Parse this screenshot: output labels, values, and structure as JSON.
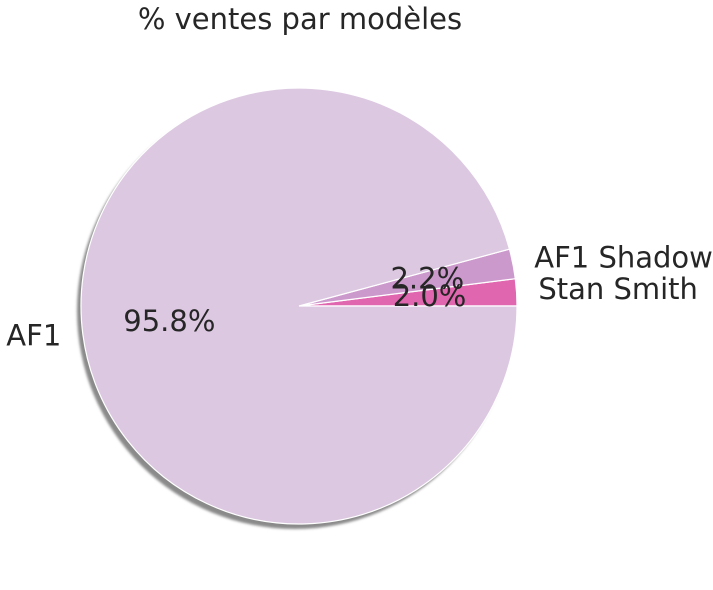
{
  "chart_data": {
    "type": "pie",
    "title": "% ventes par modèles",
    "shadow": true,
    "start_angle_deg": 0,
    "direction": "counterclockwise",
    "slices": [
      {
        "label": "Stan Smith",
        "value": 2.0,
        "pct_label": "2.0%",
        "color": "#e066b0"
      },
      {
        "label": "AF1 Shadow",
        "value": 2.2,
        "pct_label": "2.2%",
        "color": "#cc99cc"
      },
      {
        "label": "AF1",
        "value": 95.8,
        "pct_label": "95.8%",
        "color": "#dcc8e1"
      }
    ]
  }
}
